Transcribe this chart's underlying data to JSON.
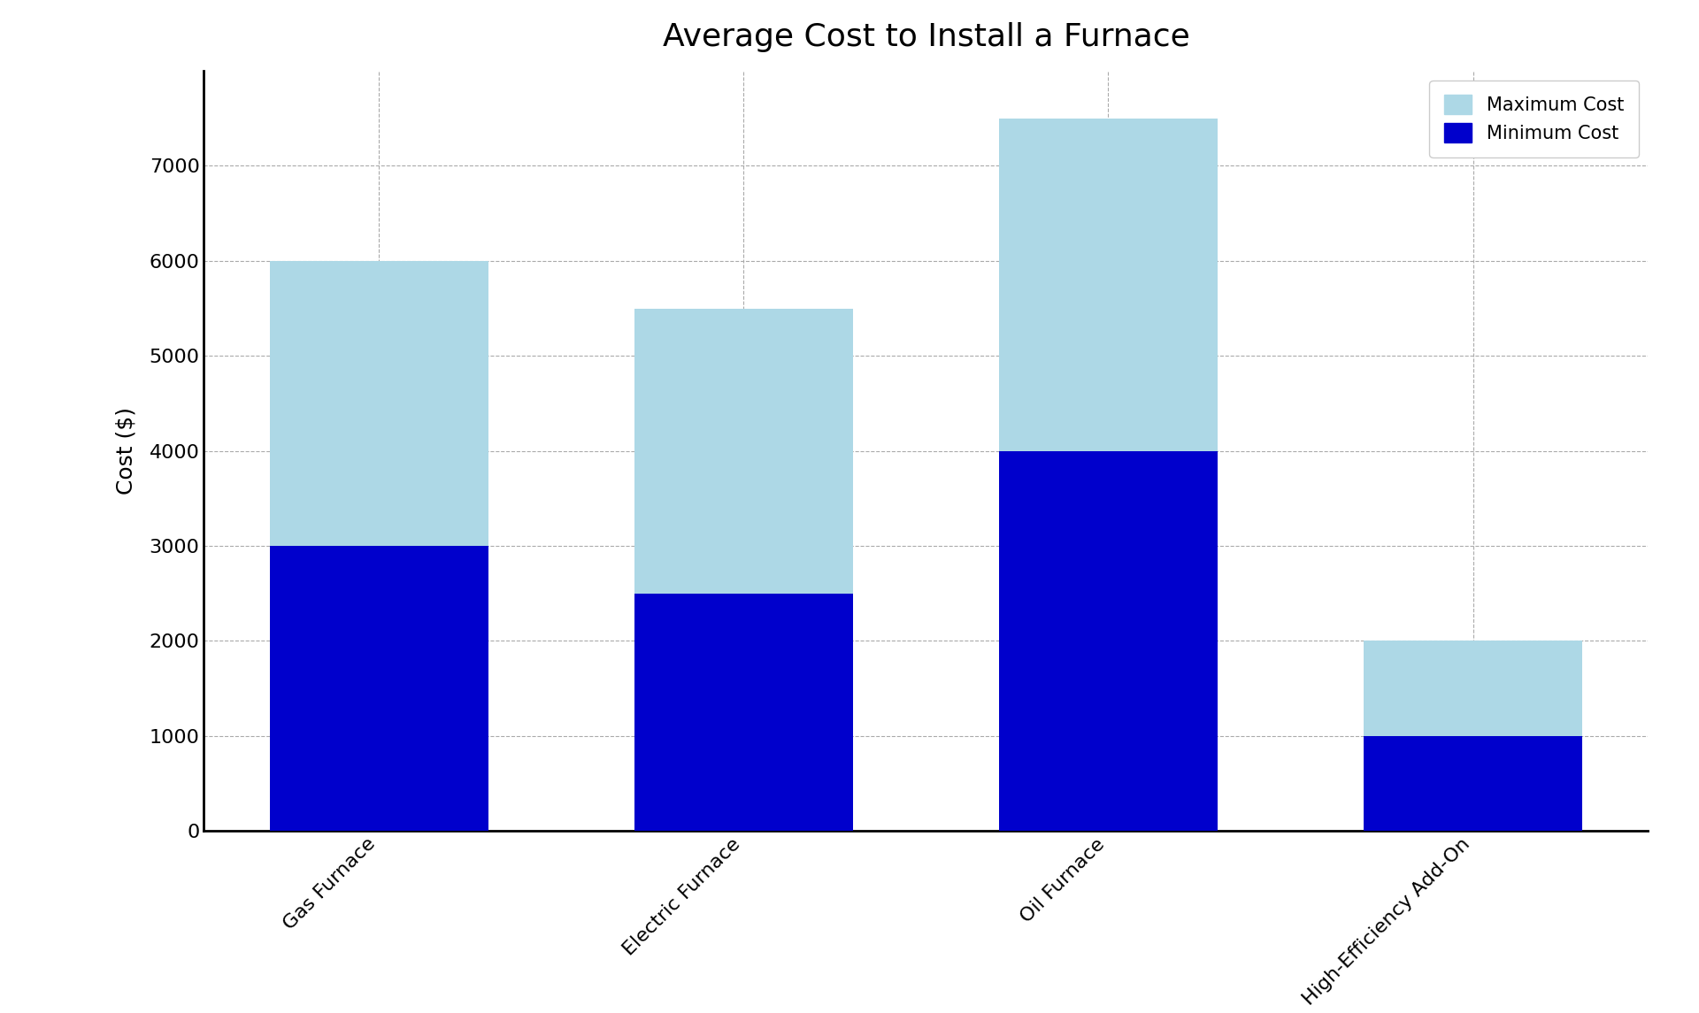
{
  "title": "Average Cost to Install a Furnace",
  "categories": [
    "Gas Furnace",
    "Electric Furnace",
    "Oil Furnace",
    "High-Efficiency Add-On"
  ],
  "min_costs": [
    3000,
    2500,
    4000,
    1000
  ],
  "max_costs": [
    6000,
    5500,
    7500,
    2000
  ],
  "bar_color_max": "#ADD8E6",
  "bar_color_min": "#0000CC",
  "ylabel": "Cost ($)",
  "ylim": [
    0,
    8000
  ],
  "yticks": [
    0,
    1000,
    2000,
    3000,
    4000,
    5000,
    6000,
    7000
  ],
  "legend_max": "Maximum Cost",
  "legend_min": "Minimum Cost",
  "title_fontsize": 26,
  "label_fontsize": 18,
  "tick_fontsize": 16,
  "legend_fontsize": 15,
  "background_color": "#ffffff",
  "grid_color": "#aaaaaa",
  "bar_width": 0.6
}
